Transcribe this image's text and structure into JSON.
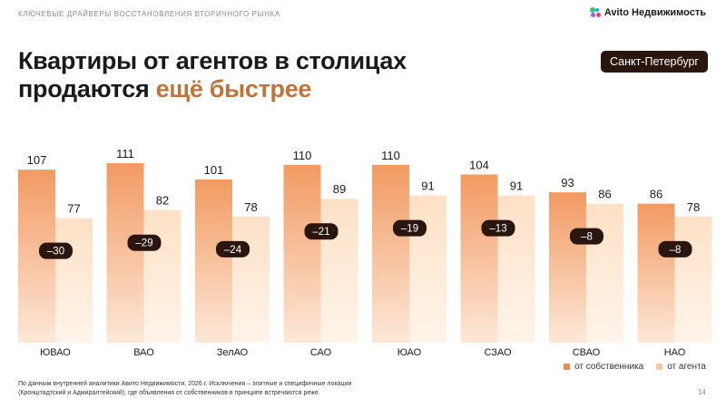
{
  "header": {
    "label": "КЛЮЧЕВЫЕ ДРАЙВЕРЫ ВОССТАНОВЛЕНИЯ ВТОРИЧНОГО РЫНКА",
    "logo_text": "Avito Недвижимость"
  },
  "title": {
    "line1": "Квартиры от агентов в столицах",
    "line2_plain": "продаются ",
    "line2_accent": "ещё быстрее"
  },
  "city_badge": "Санкт-Петербург",
  "chart_data": {
    "type": "bar",
    "categories": [
      "ЮВАО",
      "ВАО",
      "ЗелАО",
      "САО",
      "ЮАО",
      "СЗАО",
      "СВАО",
      "НАО"
    ],
    "series": [
      {
        "name": "от собственника",
        "values": [
          107,
          111,
          101,
          110,
          110,
          104,
          93,
          86
        ],
        "color": "#f4a36f"
      },
      {
        "name": "от агента",
        "values": [
          77,
          82,
          78,
          89,
          91,
          91,
          86,
          78
        ],
        "color": "#fde4cc"
      }
    ],
    "differences": [
      "–30",
      "–29",
      "–24",
      "–21",
      "–19",
      "–13",
      "–8",
      "–8"
    ],
    "ylim": [
      0,
      111
    ],
    "grid": false,
    "legend_position": "bottom-right"
  },
  "legend": {
    "owner_label": "от собственника",
    "agent_label": "от агента"
  },
  "footnote": {
    "line1": "По данным внутренней аналитики Авито Недвижимости, 2026 г. Исключения – элитные и специфичные локации",
    "line2": "(Кронштадтский и Адмиралтейский), где объявления от собственников в принципе встречаются реже."
  },
  "page_number": "14",
  "colors": {
    "accent": "#c0733a",
    "badge_bg": "#2a160f",
    "diff_badge_bg": "#2a160f",
    "logo_green": "#3ec46d",
    "logo_blue": "#0af",
    "logo_purple": "#965eeb",
    "logo_red": "#ff4053"
  }
}
